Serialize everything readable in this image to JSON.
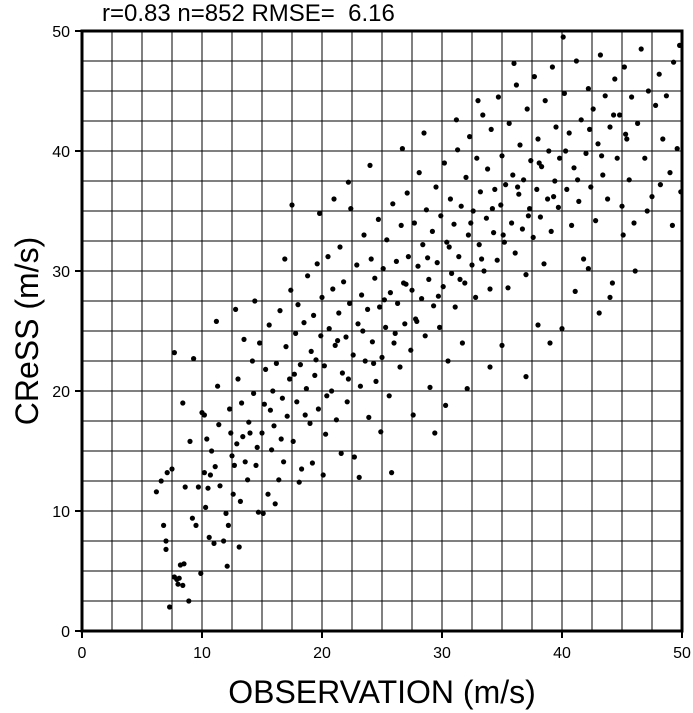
{
  "chart_data": {
    "type": "scatter",
    "stats_text": "r=0.83 n=852 RMSE=  6.16",
    "xlabel": "OBSERVATION (m/s)",
    "ylabel": "CReSS (m/s)",
    "xlim": [
      0,
      50
    ],
    "ylim": [
      0,
      50
    ],
    "grid": true,
    "grid_step": 2.5,
    "x_ticks": [
      0,
      10,
      20,
      30,
      40,
      50
    ],
    "y_ticks": [
      0,
      10,
      20,
      30,
      40,
      50
    ],
    "x_tick_labels": [
      "0",
      "10",
      "20",
      "30",
      "40",
      "50"
    ],
    "y_tick_labels": [
      "0",
      "10",
      "20",
      "30",
      "40",
      "50"
    ],
    "point_color": "#000000",
    "points": [
      [
        6.8,
        8.8
      ],
      [
        7.0,
        7.5
      ],
      [
        7.0,
        6.8
      ],
      [
        7.1,
        13.2
      ],
      [
        7.5,
        13.5
      ],
      [
        7.7,
        23.2
      ],
      [
        7.7,
        4.5
      ],
      [
        7.9,
        4.3
      ],
      [
        8.0,
        3.9
      ],
      [
        8.1,
        4.4
      ],
      [
        8.4,
        3.8
      ],
      [
        8.2,
        5.5
      ],
      [
        8.5,
        5.6
      ],
      [
        8.6,
        12.0
      ],
      [
        8.9,
        2.5
      ],
      [
        9.2,
        9.4
      ],
      [
        9.5,
        8.8
      ],
      [
        9.7,
        12.0
      ],
      [
        9.9,
        4.8
      ],
      [
        10.0,
        18.2
      ],
      [
        10.2,
        18.0
      ],
      [
        10.2,
        13.2
      ],
      [
        10.3,
        10.3
      ],
      [
        10.5,
        11.9
      ],
      [
        10.7,
        13.0
      ],
      [
        10.8,
        15.0
      ],
      [
        11.0,
        7.3
      ],
      [
        11.1,
        13.7
      ],
      [
        11.3,
        20.4
      ],
      [
        11.5,
        12.1
      ],
      [
        11.8,
        7.5
      ],
      [
        12.0,
        9.8
      ],
      [
        12.2,
        8.8
      ],
      [
        12.3,
        18.5
      ],
      [
        12.4,
        16.5
      ],
      [
        12.6,
        11.4
      ],
      [
        12.7,
        13.8
      ],
      [
        12.9,
        15.6
      ],
      [
        13.0,
        21.0
      ],
      [
        13.2,
        10.8
      ],
      [
        13.3,
        19.0
      ],
      [
        13.5,
        24.3
      ],
      [
        13.6,
        14.1
      ],
      [
        13.8,
        12.6
      ],
      [
        13.9,
        17.4
      ],
      [
        14.0,
        16.5
      ],
      [
        14.2,
        22.5
      ],
      [
        14.3,
        19.8
      ],
      [
        14.5,
        13.8
      ],
      [
        14.7,
        9.9
      ],
      [
        14.8,
        24.0
      ],
      [
        15.0,
        16.5
      ],
      [
        15.2,
        18.9
      ],
      [
        15.3,
        21.8
      ],
      [
        15.5,
        11.4
      ],
      [
        15.6,
        25.5
      ],
      [
        15.8,
        15.1
      ],
      [
        15.9,
        20.0
      ],
      [
        16.0,
        17.1
      ],
      [
        16.2,
        22.3
      ],
      [
        16.4,
        12.6
      ],
      [
        16.5,
        26.7
      ],
      [
        16.7,
        19.4
      ],
      [
        16.8,
        14.1
      ],
      [
        17.0,
        23.7
      ],
      [
        17.1,
        17.9
      ],
      [
        17.3,
        21.0
      ],
      [
        17.4,
        28.4
      ],
      [
        17.6,
        15.8
      ],
      [
        17.8,
        24.8
      ],
      [
        17.9,
        19.1
      ],
      [
        18.0,
        27.2
      ],
      [
        18.2,
        22.2
      ],
      [
        18.3,
        13.5
      ],
      [
        18.5,
        25.7
      ],
      [
        18.7,
        20.2
      ],
      [
        18.8,
        29.6
      ],
      [
        19.0,
        17.3
      ],
      [
        19.1,
        23.3
      ],
      [
        19.3,
        26.3
      ],
      [
        19.4,
        21.3
      ],
      [
        19.6,
        30.6
      ],
      [
        19.7,
        18.5
      ],
      [
        19.9,
        24.6
      ],
      [
        20.0,
        27.8
      ],
      [
        20.2,
        22.1
      ],
      [
        20.3,
        16.4
      ],
      [
        20.5,
        31.2
      ],
      [
        20.6,
        25.2
      ],
      [
        20.8,
        20.0
      ],
      [
        20.9,
        28.5
      ],
      [
        21.1,
        23.8
      ],
      [
        21.2,
        17.6
      ],
      [
        21.4,
        26.5
      ],
      [
        21.5,
        32.0
      ],
      [
        21.7,
        21.5
      ],
      [
        21.8,
        29.1
      ],
      [
        22.0,
        24.5
      ],
      [
        22.1,
        19.1
      ],
      [
        22.3,
        27.3
      ],
      [
        22.4,
        35.2
      ],
      [
        22.6,
        23.0
      ],
      [
        22.7,
        14.5
      ],
      [
        22.9,
        30.5
      ],
      [
        23.0,
        25.6
      ],
      [
        23.2,
        20.4
      ],
      [
        23.3,
        28.0
      ],
      [
        23.5,
        33.0
      ],
      [
        23.6,
        22.5
      ],
      [
        23.8,
        26.8
      ],
      [
        23.9,
        17.8
      ],
      [
        24.1,
        31.0
      ],
      [
        24.2,
        24.1
      ],
      [
        24.4,
        29.4
      ],
      [
        24.5,
        20.8
      ],
      [
        24.7,
        34.3
      ],
      [
        24.8,
        27.0
      ],
      [
        25.0,
        22.8
      ],
      [
        25.1,
        30.2
      ],
      [
        25.3,
        25.3
      ],
      [
        25.4,
        32.6
      ],
      [
        25.6,
        19.6
      ],
      [
        25.7,
        28.2
      ],
      [
        25.9,
        35.6
      ],
      [
        26.0,
        24.0
      ],
      [
        26.2,
        30.8
      ],
      [
        26.3,
        27.3
      ],
      [
        26.5,
        22.0
      ],
      [
        26.6,
        33.8
      ],
      [
        26.8,
        29.0
      ],
      [
        26.9,
        25.6
      ],
      [
        27.1,
        36.5
      ],
      [
        27.2,
        31.2
      ],
      [
        27.4,
        23.4
      ],
      [
        27.5,
        28.4
      ],
      [
        27.7,
        34.0
      ],
      [
        27.8,
        26.0
      ],
      [
        28.0,
        30.4
      ],
      [
        28.1,
        38.2
      ],
      [
        28.3,
        27.7
      ],
      [
        28.4,
        32.2
      ],
      [
        28.6,
        24.6
      ],
      [
        28.7,
        35.1
      ],
      [
        28.9,
        29.3
      ],
      [
        29.0,
        20.3
      ],
      [
        29.2,
        33.3
      ],
      [
        29.3,
        27.1
      ],
      [
        29.5,
        37.0
      ],
      [
        29.6,
        30.7
      ],
      [
        29.8,
        25.3
      ],
      [
        29.9,
        34.6
      ],
      [
        30.1,
        28.7
      ],
      [
        30.2,
        39.0
      ],
      [
        30.4,
        32.4
      ],
      [
        30.5,
        22.5
      ],
      [
        30.7,
        36.0
      ],
      [
        30.8,
        29.8
      ],
      [
        31.0,
        33.9
      ],
      [
        31.1,
        27.0
      ],
      [
        31.3,
        40.1
      ],
      [
        31.4,
        31.2
      ],
      [
        31.6,
        35.4
      ],
      [
        31.7,
        24.0
      ],
      [
        31.9,
        29.0
      ],
      [
        32.0,
        37.8
      ],
      [
        32.2,
        33.0
      ],
      [
        32.3,
        41.2
      ],
      [
        32.5,
        30.5
      ],
      [
        32.6,
        35.0
      ],
      [
        32.8,
        27.8
      ],
      [
        32.9,
        39.4
      ],
      [
        33.1,
        32.2
      ],
      [
        33.2,
        36.6
      ],
      [
        33.4,
        43.0
      ],
      [
        33.5,
        30.0
      ],
      [
        33.7,
        34.4
      ],
      [
        33.8,
        38.5
      ],
      [
        34.0,
        28.5
      ],
      [
        34.1,
        41.8
      ],
      [
        34.3,
        33.2
      ],
      [
        34.4,
        36.8
      ],
      [
        34.6,
        30.9
      ],
      [
        34.7,
        44.5
      ],
      [
        34.9,
        35.5
      ],
      [
        35.0,
        39.6
      ],
      [
        35.2,
        32.4
      ],
      [
        35.3,
        37.2
      ],
      [
        35.5,
        28.6
      ],
      [
        35.6,
        42.3
      ],
      [
        35.8,
        34.0
      ],
      [
        35.9,
        38.0
      ],
      [
        36.1,
        31.5
      ],
      [
        36.2,
        45.5
      ],
      [
        36.4,
        36.4
      ],
      [
        36.5,
        40.5
      ],
      [
        36.7,
        33.5
      ],
      [
        36.8,
        37.6
      ],
      [
        37.0,
        29.7
      ],
      [
        37.1,
        43.5
      ],
      [
        37.3,
        35.2
      ],
      [
        37.4,
        39.2
      ],
      [
        37.6,
        32.8
      ],
      [
        37.7,
        46.2
      ],
      [
        37.9,
        36.8
      ],
      [
        38.0,
        41.0
      ],
      [
        38.2,
        34.5
      ],
      [
        38.3,
        38.7
      ],
      [
        38.5,
        30.6
      ],
      [
        38.6,
        44.2
      ],
      [
        38.8,
        36.0
      ],
      [
        38.9,
        40.0
      ],
      [
        39.1,
        33.3
      ],
      [
        39.2,
        47.0
      ],
      [
        39.4,
        37.5
      ],
      [
        39.5,
        42.0
      ],
      [
        39.7,
        35.3
      ],
      [
        39.8,
        39.4
      ],
      [
        40.0,
        25.2
      ],
      [
        40.2,
        44.8
      ],
      [
        40.4,
        36.8
      ],
      [
        40.6,
        41.5
      ],
      [
        40.8,
        33.8
      ],
      [
        41.0,
        38.6
      ],
      [
        41.2,
        47.5
      ],
      [
        41.4,
        35.8
      ],
      [
        41.6,
        42.6
      ],
      [
        41.8,
        31.0
      ],
      [
        42.0,
        39.8
      ],
      [
        42.2,
        45.2
      ],
      [
        42.4,
        37.0
      ],
      [
        42.6,
        43.5
      ],
      [
        42.8,
        34.2
      ],
      [
        43.0,
        40.6
      ],
      [
        43.2,
        48.0
      ],
      [
        43.4,
        38.0
      ],
      [
        43.6,
        44.6
      ],
      [
        43.8,
        36.0
      ],
      [
        44.0,
        42.0
      ],
      [
        44.2,
        29.0
      ],
      [
        44.4,
        46.0
      ],
      [
        44.6,
        39.4
      ],
      [
        44.8,
        43.0
      ],
      [
        45.0,
        35.4
      ],
      [
        45.2,
        47.0
      ],
      [
        45.4,
        41.0
      ],
      [
        45.6,
        37.6
      ],
      [
        45.8,
        44.5
      ],
      [
        46.0,
        34.0
      ],
      [
        46.3,
        42.3
      ],
      [
        46.6,
        48.5
      ],
      [
        46.9,
        39.4
      ],
      [
        47.2,
        45.0
      ],
      [
        47.5,
        36.2
      ],
      [
        47.8,
        43.8
      ],
      [
        48.1,
        46.4
      ],
      [
        48.4,
        41.0
      ],
      [
        48.7,
        44.6
      ],
      [
        49.0,
        38.2
      ],
      [
        49.3,
        47.4
      ],
      [
        49.6,
        40.2
      ],
      [
        49.8,
        48.8
      ],
      [
        49.9,
        36.6
      ],
      [
        6.2,
        11.6
      ],
      [
        6.6,
        12.5
      ],
      [
        7.3,
        2.0
      ],
      [
        8.4,
        19.0
      ],
      [
        9.0,
        15.8
      ],
      [
        9.3,
        22.7
      ],
      [
        10.6,
        7.8
      ],
      [
        11.2,
        25.8
      ],
      [
        12.1,
        5.4
      ],
      [
        12.8,
        26.8
      ],
      [
        13.1,
        7.0
      ],
      [
        14.4,
        27.5
      ],
      [
        15.1,
        9.8
      ],
      [
        16.1,
        10.6
      ],
      [
        16.9,
        31.0
      ],
      [
        17.5,
        35.5
      ],
      [
        18.1,
        12.4
      ],
      [
        19.2,
        14.0
      ],
      [
        19.8,
        34.8
      ],
      [
        20.1,
        13.0
      ],
      [
        21.0,
        36.0
      ],
      [
        21.6,
        14.8
      ],
      [
        22.2,
        37.4
      ],
      [
        23.1,
        12.8
      ],
      [
        24.0,
        38.8
      ],
      [
        24.9,
        16.6
      ],
      [
        25.8,
        13.2
      ],
      [
        26.7,
        40.2
      ],
      [
        27.6,
        18.0
      ],
      [
        28.5,
        41.5
      ],
      [
        29.4,
        16.5
      ],
      [
        30.3,
        18.8
      ],
      [
        31.2,
        42.6
      ],
      [
        32.1,
        20.2
      ],
      [
        33.0,
        44.2
      ],
      [
        34.0,
        22.0
      ],
      [
        35.0,
        23.8
      ],
      [
        36.0,
        47.3
      ],
      [
        37.0,
        21.2
      ],
      [
        38.0,
        25.5
      ],
      [
        39.0,
        24.0
      ],
      [
        40.1,
        49.5
      ],
      [
        41.1,
        28.3
      ],
      [
        42.2,
        30.2
      ],
      [
        43.1,
        26.5
      ],
      [
        44.0,
        27.8
      ],
      [
        45.1,
        33.0
      ],
      [
        46.1,
        30.0
      ],
      [
        47.1,
        35.0
      ],
      [
        48.2,
        37.2
      ],
      [
        49.2,
        33.8
      ],
      [
        10.4,
        16.0
      ],
      [
        11.4,
        17.2
      ],
      [
        12.5,
        14.6
      ],
      [
        13.4,
        16.2
      ],
      [
        14.6,
        15.3
      ],
      [
        15.7,
        18.4
      ],
      [
        16.6,
        16.0
      ],
      [
        17.7,
        21.4
      ],
      [
        18.6,
        18.0
      ],
      [
        19.5,
        22.6
      ],
      [
        20.4,
        19.6
      ],
      [
        21.3,
        24.2
      ],
      [
        22.2,
        21.0
      ],
      [
        23.4,
        25.0
      ],
      [
        24.3,
        22.3
      ],
      [
        25.2,
        27.6
      ],
      [
        26.1,
        24.8
      ],
      [
        27.0,
        28.9
      ],
      [
        27.9,
        25.8
      ],
      [
        28.8,
        31.1
      ],
      [
        29.7,
        27.9
      ],
      [
        30.6,
        32.0
      ],
      [
        31.5,
        29.3
      ],
      [
        32.4,
        34.0
      ],
      [
        33.3,
        31.0
      ],
      [
        34.2,
        35.2
      ],
      [
        35.1,
        33.0
      ],
      [
        36.3,
        37.0
      ],
      [
        37.2,
        34.6
      ],
      [
        38.1,
        39.0
      ],
      [
        39.3,
        36.2
      ],
      [
        40.3,
        40.0
      ],
      [
        41.3,
        37.6
      ],
      [
        42.3,
        41.8
      ],
      [
        43.3,
        39.6
      ],
      [
        44.3,
        43.0
      ],
      [
        45.3,
        41.4
      ]
    ]
  }
}
